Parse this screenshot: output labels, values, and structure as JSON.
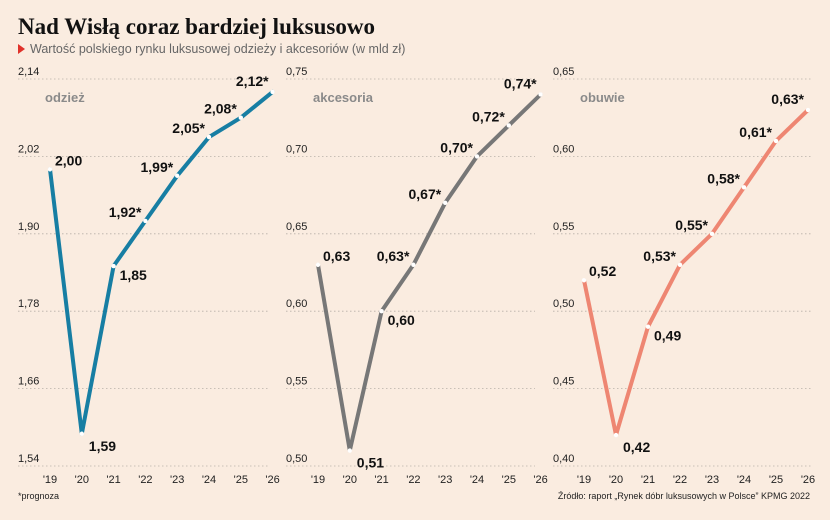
{
  "title": "Nad Wisłą coraz bardziej luksusowo",
  "subtitle": "Wartość polskiego rynku luksusowej odzieży i akcesoriów (w mld zł)",
  "footnote": "*prognoza",
  "source": "Źródło: raport „Rynek dóbr luksusowych w Polsce” KPMG 2022",
  "colors": {
    "background": "#faece0",
    "odziez": "#177ea3",
    "akcesoria": "#777777",
    "obuwie": "#ee8672",
    "forecast_marker": "#e0322a"
  },
  "chart_data": [
    {
      "type": "line",
      "title": "odzież",
      "categories": [
        "'19",
        "'20",
        "'21",
        "'22",
        "'23",
        "'24",
        "'25",
        "'26"
      ],
      "values": [
        2.0,
        1.59,
        1.85,
        1.92,
        1.99,
        2.05,
        2.08,
        2.12
      ],
      "labels": [
        "2,00",
        "1,59",
        "1,85",
        "1,92*",
        "1,99*",
        "2,05*",
        "2,08*",
        "2,12*"
      ],
      "ylim": [
        1.54,
        2.14
      ],
      "yticks": [
        "2,14",
        "2,02",
        "1,90",
        "1,78",
        "1,66",
        "1,54"
      ],
      "ytick_values": [
        2.14,
        2.02,
        1.9,
        1.78,
        1.66,
        1.54
      ],
      "color": "#177ea3"
    },
    {
      "type": "line",
      "title": "akcesoria",
      "categories": [
        "'19",
        "'20",
        "'21",
        "'22",
        "'23",
        "'24",
        "'25",
        "'26"
      ],
      "values": [
        0.63,
        0.51,
        0.6,
        0.63,
        0.67,
        0.7,
        0.72,
        0.74
      ],
      "labels": [
        "0,63",
        "0,51",
        "0,60",
        "0,63*",
        "0,67*",
        "0,70*",
        "0,72*",
        "0,74*"
      ],
      "ylim": [
        0.5,
        0.75
      ],
      "yticks": [
        "0,75",
        "0,70",
        "0,65",
        "0,60",
        "0,55",
        "0,50"
      ],
      "ytick_values": [
        0.75,
        0.7,
        0.65,
        0.6,
        0.55,
        0.5
      ],
      "color": "#777777"
    },
    {
      "type": "line",
      "title": "obuwie",
      "categories": [
        "'19",
        "'20",
        "'21",
        "'22",
        "'23",
        "'24",
        "'25",
        "'26"
      ],
      "values": [
        0.52,
        0.42,
        0.49,
        0.53,
        0.55,
        0.58,
        0.61,
        0.63
      ],
      "labels": [
        "0,52",
        "0,42",
        "0,49",
        "0,53*",
        "0,55*",
        "0,58*",
        "0,61*",
        "0,63*"
      ],
      "ylim": [
        0.4,
        0.65
      ],
      "yticks": [
        "0,65",
        "0,60",
        "0,55",
        "0,50",
        "0,45",
        "0,40"
      ],
      "ytick_values": [
        0.65,
        0.6,
        0.55,
        0.5,
        0.45,
        0.4
      ],
      "color": "#ee8672"
    }
  ]
}
